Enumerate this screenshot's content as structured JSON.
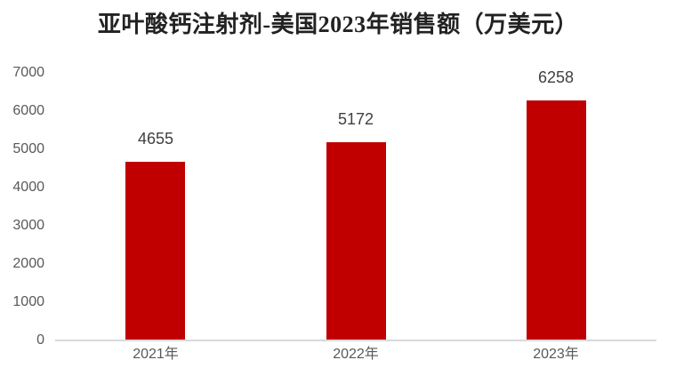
{
  "chart_data": {
    "type": "bar",
    "title": "亚叶酸钙注射剂-美国2023年销售额（万美元）",
    "categories": [
      "2021年",
      "2022年",
      "2023年"
    ],
    "values": [
      4655,
      5172,
      6258
    ],
    "ylim": [
      0,
      7000
    ],
    "ytick_step": 1000,
    "yticks": [
      0,
      1000,
      2000,
      3000,
      4000,
      5000,
      6000,
      7000
    ],
    "grid": false,
    "legend": false,
    "xlabel": "",
    "ylabel": "",
    "colors": {
      "bar": "#c00000",
      "axis_line": "#d9d9d9",
      "value_label": "#404040",
      "tick_label": "#595959",
      "title": "#222222"
    }
  }
}
